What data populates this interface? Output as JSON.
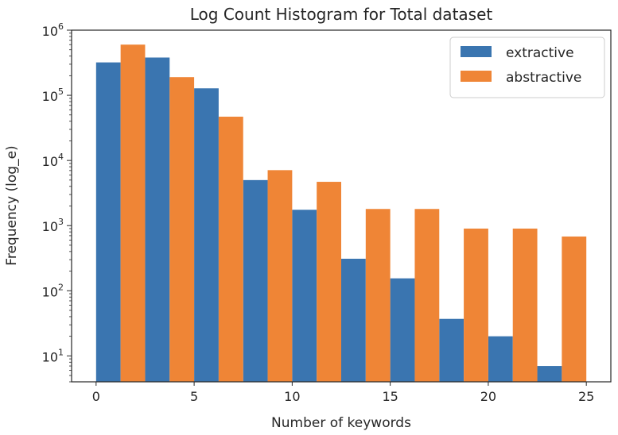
{
  "chart_data": {
    "type": "bar",
    "title": "Log Count Histogram for Total dataset",
    "xlabel": "Number of keywords",
    "ylabel": "Frequency (log_e)",
    "y_scale": "log",
    "ylim": [
      4,
      1000000
    ],
    "xlim": [
      -1.25,
      26.25
    ],
    "x_ticks": [
      0,
      5,
      10,
      15,
      20,
      25
    ],
    "y_ticks": [
      {
        "value": 10,
        "mantissa": "10",
        "exponent": "1"
      },
      {
        "value": 100,
        "mantissa": "10",
        "exponent": "2"
      },
      {
        "value": 1000,
        "mantissa": "10",
        "exponent": "3"
      },
      {
        "value": 10000,
        "mantissa": "10",
        "exponent": "4"
      },
      {
        "value": 100000,
        "mantissa": "10",
        "exponent": "5"
      },
      {
        "value": 1000000,
        "mantissa": "10",
        "exponent": "6"
      }
    ],
    "bin_edges": [
      0,
      2.5,
      5,
      7.5,
      10,
      12.5,
      15,
      17.5,
      20,
      22.5,
      25
    ],
    "series": [
      {
        "name": "extractive",
        "color": "#3a75b0",
        "values": [
          320000,
          380000,
          128000,
          5000,
          1750,
          310,
          155,
          37,
          20,
          7
        ]
      },
      {
        "name": "abstractive",
        "color": "#ef8536",
        "values": [
          600000,
          190000,
          47000,
          7100,
          4700,
          1800,
          1800,
          900,
          900,
          680
        ]
      }
    ],
    "legend_position": "top-right",
    "grid": false
  }
}
